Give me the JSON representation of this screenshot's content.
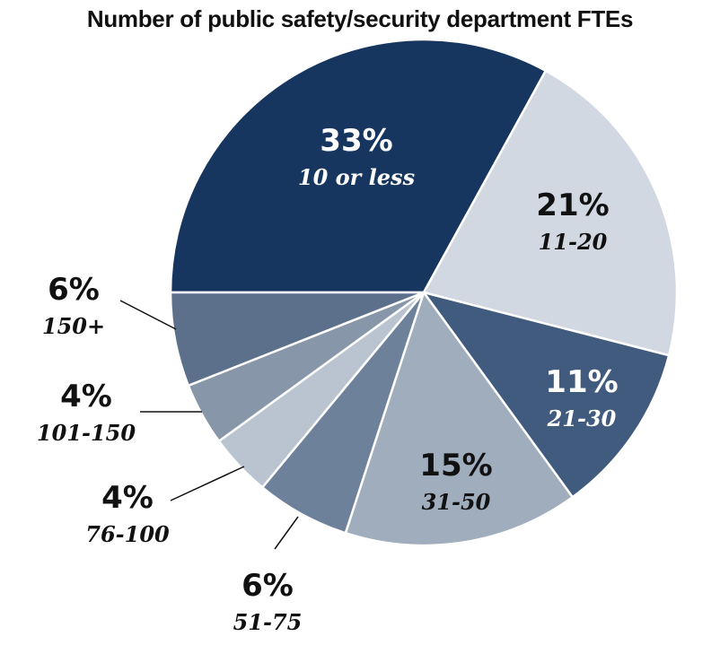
{
  "chart_data": {
    "type": "pie",
    "title": "Number of public safety/security department FTEs",
    "slices": [
      {
        "label": "10 or less",
        "value": 33,
        "display": "33%",
        "color": "#17365f",
        "text_color": "#ffffff",
        "label_style": "inside"
      },
      {
        "label": "11-20",
        "value": 21,
        "display": "21%",
        "color": "#d2d8e1",
        "text_color": "#111111",
        "label_style": "inside"
      },
      {
        "label": "21-30",
        "value": 11,
        "display": "11%",
        "color": "#415b7e",
        "text_color": "#ffffff",
        "label_style": "inside"
      },
      {
        "label": "31-50",
        "value": 15,
        "display": "15%",
        "color": "#a0adbd",
        "text_color": "#111111",
        "label_style": "inside"
      },
      {
        "label": "51-75",
        "value": 6,
        "display": "6%",
        "color": "#6e819b",
        "text_color": "#111111",
        "label_style": "outside"
      },
      {
        "label": "76-100",
        "value": 4,
        "display": "4%",
        "color": "#bac4d0",
        "text_color": "#111111",
        "label_style": "outside"
      },
      {
        "label": "101-150",
        "value": 4,
        "display": "4%",
        "color": "#8796a9",
        "text_color": "#111111",
        "label_style": "outside"
      },
      {
        "label": "150+",
        "value": 6,
        "display": "6%",
        "color": "#5c6f8b",
        "text_color": "#111111",
        "label_style": "outside"
      }
    ]
  }
}
